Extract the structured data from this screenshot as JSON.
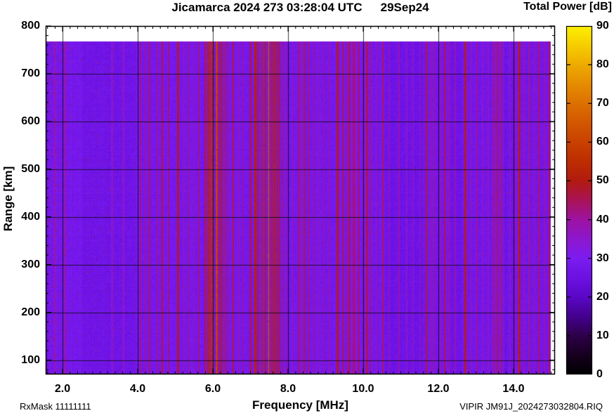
{
  "title": {
    "main": "Jicamarca 2024 273 03:28:04 UTC",
    "date": "29Sep24"
  },
  "colorbar": {
    "title": "Total Power [dB]",
    "min": 0,
    "max": 90,
    "tick_step": 10,
    "tick_labels": [
      "0",
      "10",
      "20",
      "30",
      "40",
      "50",
      "60",
      "70",
      "80",
      "90"
    ],
    "palette": [
      [
        0,
        "#000000"
      ],
      [
        5,
        "#16001f"
      ],
      [
        10,
        "#2d0048"
      ],
      [
        15,
        "#44008f"
      ],
      [
        20,
        "#5a07c6"
      ],
      [
        25,
        "#6c11e2"
      ],
      [
        30,
        "#7b1cf0"
      ],
      [
        35,
        "#8d17cd"
      ],
      [
        40,
        "#9d12a2"
      ],
      [
        45,
        "#a91356"
      ],
      [
        50,
        "#b21a10"
      ],
      [
        55,
        "#bd2d00"
      ],
      [
        60,
        "#c94100"
      ],
      [
        65,
        "#d25700"
      ],
      [
        70,
        "#dc7000"
      ],
      [
        75,
        "#e58c00"
      ],
      [
        80,
        "#eeab00"
      ],
      [
        85,
        "#f6cd00"
      ],
      [
        90,
        "#fdf000"
      ]
    ]
  },
  "axes": {
    "x": {
      "label": "Frequency [MHz]",
      "min": 1.55,
      "max": 15.1,
      "major_ticks": [
        2,
        4,
        6,
        8,
        10,
        12,
        14
      ],
      "major_tick_labels": [
        "2.0",
        "4.0",
        "6.0",
        "8.0",
        "10.0",
        "12.0",
        "14.0"
      ],
      "minor_step": 0.2
    },
    "y": {
      "label": "Range [km]",
      "min": 70,
      "max": 800,
      "major_ticks": [
        100,
        200,
        300,
        400,
        500,
        600,
        700,
        800
      ],
      "major_tick_labels": [
        "100",
        "200",
        "300",
        "400",
        "500",
        "600",
        "700",
        "800"
      ],
      "minor_step": 20
    }
  },
  "footer": {
    "left": "RxMask 11111111",
    "right": "VIPIR  JM91J_2024273032804.RIQ"
  },
  "chart_data": {
    "type": "heatmap",
    "title": "Jicamarca 2024 273 03:28:04 UTC  29Sep24",
    "xlabel": "Frequency [MHz]",
    "ylabel": "Range [km]",
    "zlabel": "Total Power [dB]",
    "x_range_mhz": [
      1.55,
      15.1
    ],
    "y_range_km": [
      70,
      800
    ],
    "z_range_db": [
      0,
      90
    ],
    "grid": true,
    "data_extent": {
      "freq_mhz": [
        1.55,
        14.98
      ],
      "range_km": [
        70,
        768
      ]
    },
    "background_power_db": 28.2,
    "background_power_db_above_10mhz": 27.5,
    "description": "VIPIR ionosonde total received power vs frequency and range; violet background near 28 dB with vertical red/orange RFI stripes, impulsive noise speckle below ~3.7 MHz.",
    "rfi_stripes": [
      {
        "freq_mhz": 1.8,
        "half_width_mhz": 0.02,
        "peak_db": 38
      },
      {
        "freq_mhz": 2.07,
        "half_width_mhz": 0.02,
        "peak_db": 40
      },
      {
        "freq_mhz": 3.32,
        "half_width_mhz": 0.02,
        "peak_db": 37
      },
      {
        "freq_mhz": 3.62,
        "half_width_mhz": 0.02,
        "peak_db": 37
      },
      {
        "freq_mhz": 4.07,
        "half_width_mhz": 0.02,
        "peak_db": 43
      },
      {
        "freq_mhz": 4.2,
        "half_width_mhz": 0.015,
        "peak_db": 40
      },
      {
        "freq_mhz": 4.32,
        "half_width_mhz": 0.022,
        "peak_db": 45
      },
      {
        "freq_mhz": 4.52,
        "half_width_mhz": 0.018,
        "peak_db": 42
      },
      {
        "freq_mhz": 4.65,
        "half_width_mhz": 0.025,
        "peak_db": 47
      },
      {
        "freq_mhz": 4.82,
        "half_width_mhz": 0.02,
        "peak_db": 44
      },
      {
        "freq_mhz": 5.07,
        "half_width_mhz": 0.028,
        "peak_db": 49
      },
      {
        "freq_mhz": 5.22,
        "half_width_mhz": 0.015,
        "peak_db": 40
      },
      {
        "freq_mhz": 5.35,
        "half_width_mhz": 0.018,
        "peak_db": 42
      },
      {
        "freq_mhz": 5.5,
        "half_width_mhz": 0.015,
        "peak_db": 40
      },
      {
        "freq_mhz": 5.62,
        "half_width_mhz": 0.018,
        "peak_db": 43
      },
      {
        "freq_mhz": 5.8,
        "half_width_mhz": 0.02,
        "peak_db": 47
      },
      {
        "freq_mhz": 5.88,
        "half_width_mhz": 0.03,
        "peak_db": 53
      },
      {
        "freq_mhz": 5.97,
        "half_width_mhz": 0.028,
        "peak_db": 56
      },
      {
        "freq_mhz": 6.1,
        "half_width_mhz": 0.022,
        "peak_db": 63
      },
      {
        "freq_mhz": 6.18,
        "half_width_mhz": 0.02,
        "peak_db": 48
      },
      {
        "freq_mhz": 6.24,
        "half_width_mhz": 0.02,
        "peak_db": 50
      },
      {
        "freq_mhz": 6.33,
        "half_width_mhz": 0.018,
        "peak_db": 44
      },
      {
        "freq_mhz": 6.4,
        "half_width_mhz": 0.018,
        "peak_db": 45
      },
      {
        "freq_mhz": 6.54,
        "half_width_mhz": 0.022,
        "peak_db": 47
      },
      {
        "freq_mhz": 6.68,
        "half_width_mhz": 0.015,
        "peak_db": 41
      },
      {
        "freq_mhz": 6.8,
        "half_width_mhz": 0.015,
        "peak_db": 40
      },
      {
        "freq_mhz": 7.0,
        "half_width_mhz": 0.022,
        "peak_db": 47
      },
      {
        "freq_mhz": 7.12,
        "half_width_mhz": 0.028,
        "peak_db": 53
      },
      {
        "freq_mhz": 7.2,
        "half_width_mhz": 0.02,
        "peak_db": 50
      },
      {
        "freq_mhz": 7.31,
        "half_width_mhz": 0.022,
        "peak_db": 53
      },
      {
        "freq_mhz": 7.4,
        "half_width_mhz": 0.018,
        "peak_db": 49
      },
      {
        "freq_mhz": 7.48,
        "half_width_mhz": 0.016,
        "peak_db": 64
      },
      {
        "freq_mhz": 7.56,
        "half_width_mhz": 0.018,
        "peak_db": 51
      },
      {
        "freq_mhz": 7.63,
        "half_width_mhz": 0.025,
        "peak_db": 53
      },
      {
        "freq_mhz": 7.72,
        "half_width_mhz": 0.018,
        "peak_db": 48
      },
      {
        "freq_mhz": 7.78,
        "half_width_mhz": 0.02,
        "peak_db": 49
      },
      {
        "freq_mhz": 7.88,
        "half_width_mhz": 0.015,
        "peak_db": 43
      },
      {
        "freq_mhz": 7.95,
        "half_width_mhz": 0.015,
        "peak_db": 42
      },
      {
        "freq_mhz": 8.12,
        "half_width_mhz": 0.015,
        "peak_db": 40
      },
      {
        "freq_mhz": 8.28,
        "half_width_mhz": 0.02,
        "peak_db": 44
      },
      {
        "freq_mhz": 8.36,
        "half_width_mhz": 0.015,
        "peak_db": 42
      },
      {
        "freq_mhz": 8.43,
        "half_width_mhz": 0.025,
        "peak_db": 46
      },
      {
        "freq_mhz": 8.55,
        "half_width_mhz": 0.018,
        "peak_db": 44
      },
      {
        "freq_mhz": 8.69,
        "half_width_mhz": 0.016,
        "peak_db": 41
      },
      {
        "freq_mhz": 8.83,
        "half_width_mhz": 0.013,
        "peak_db": 39
      },
      {
        "freq_mhz": 8.95,
        "half_width_mhz": 0.015,
        "peak_db": 40
      },
      {
        "freq_mhz": 9.1,
        "half_width_mhz": 0.013,
        "peak_db": 39
      },
      {
        "freq_mhz": 9.32,
        "half_width_mhz": 0.03,
        "peak_db": 50
      },
      {
        "freq_mhz": 9.45,
        "half_width_mhz": 0.02,
        "peak_db": 46
      },
      {
        "freq_mhz": 9.55,
        "half_width_mhz": 0.015,
        "peak_db": 42
      },
      {
        "freq_mhz": 9.63,
        "half_width_mhz": 0.022,
        "peak_db": 47
      },
      {
        "freq_mhz": 9.75,
        "half_width_mhz": 0.055,
        "peak_db": 41
      },
      {
        "freq_mhz": 9.88,
        "half_width_mhz": 0.025,
        "peak_db": 44
      },
      {
        "freq_mhz": 10.02,
        "half_width_mhz": 0.018,
        "peak_db": 42
      },
      {
        "freq_mhz": 10.1,
        "half_width_mhz": 0.025,
        "peak_db": 46
      },
      {
        "freq_mhz": 10.19,
        "half_width_mhz": 0.016,
        "peak_db": 43
      },
      {
        "freq_mhz": 10.35,
        "half_width_mhz": 0.013,
        "peak_db": 39
      },
      {
        "freq_mhz": 10.52,
        "half_width_mhz": 0.022,
        "peak_db": 45
      },
      {
        "freq_mhz": 10.68,
        "half_width_mhz": 0.013,
        "peak_db": 39
      },
      {
        "freq_mhz": 10.95,
        "half_width_mhz": 0.015,
        "peak_db": 39
      },
      {
        "freq_mhz": 11.15,
        "half_width_mhz": 0.015,
        "peak_db": 39
      },
      {
        "freq_mhz": 11.32,
        "half_width_mhz": 0.012,
        "peak_db": 38
      },
      {
        "freq_mhz": 11.52,
        "half_width_mhz": 0.012,
        "peak_db": 38
      },
      {
        "freq_mhz": 11.68,
        "half_width_mhz": 0.025,
        "peak_db": 48
      },
      {
        "freq_mhz": 11.8,
        "half_width_mhz": 0.014,
        "peak_db": 41
      },
      {
        "freq_mhz": 11.88,
        "half_width_mhz": 0.016,
        "peak_db": 42
      },
      {
        "freq_mhz": 12.05,
        "half_width_mhz": 0.013,
        "peak_db": 39
      },
      {
        "freq_mhz": 12.18,
        "half_width_mhz": 0.025,
        "peak_db": 45
      },
      {
        "freq_mhz": 12.3,
        "half_width_mhz": 0.013,
        "peak_db": 40
      },
      {
        "freq_mhz": 12.45,
        "half_width_mhz": 0.015,
        "peak_db": 39
      },
      {
        "freq_mhz": 12.72,
        "half_width_mhz": 0.026,
        "peak_db": 51
      },
      {
        "freq_mhz": 12.85,
        "half_width_mhz": 0.014,
        "peak_db": 41
      },
      {
        "freq_mhz": 13.02,
        "half_width_mhz": 0.02,
        "peak_db": 42
      },
      {
        "freq_mhz": 13.18,
        "half_width_mhz": 0.012,
        "peak_db": 38
      },
      {
        "freq_mhz": 13.32,
        "half_width_mhz": 0.014,
        "peak_db": 39
      },
      {
        "freq_mhz": 13.48,
        "half_width_mhz": 0.03,
        "peak_db": 42
      },
      {
        "freq_mhz": 13.58,
        "half_width_mhz": 0.025,
        "peak_db": 44
      },
      {
        "freq_mhz": 13.68,
        "half_width_mhz": 0.02,
        "peak_db": 44
      },
      {
        "freq_mhz": 13.9,
        "half_width_mhz": 0.013,
        "peak_db": 38
      },
      {
        "freq_mhz": 14.05,
        "half_width_mhz": 0.014,
        "peak_db": 40
      },
      {
        "freq_mhz": 14.15,
        "half_width_mhz": 0.026,
        "peak_db": 51
      },
      {
        "freq_mhz": 14.28,
        "half_width_mhz": 0.013,
        "peak_db": 40
      },
      {
        "freq_mhz": 14.42,
        "half_width_mhz": 0.018,
        "peak_db": 43
      },
      {
        "freq_mhz": 14.55,
        "half_width_mhz": 0.014,
        "peak_db": 41
      },
      {
        "freq_mhz": 14.68,
        "half_width_mhz": 0.02,
        "peak_db": 44
      },
      {
        "freq_mhz": 14.82,
        "half_width_mhz": 0.013,
        "peak_db": 40
      },
      {
        "freq_mhz": 14.95,
        "half_width_mhz": 0.024,
        "peak_db": 46
      }
    ],
    "dark_bands": [
      {
        "freq_range_mhz": [
          1.55,
          1.62
        ],
        "delta_db": -2.0
      },
      {
        "freq_range_mhz": [
          2.5,
          3.95
        ],
        "delta_db": -1.5
      },
      {
        "freq_range_mhz": [
          10.55,
          11.58
        ],
        "delta_db": -1.3
      },
      {
        "freq_range_mhz": [
          12.32,
          12.62
        ],
        "delta_db": -1.2
      },
      {
        "freq_range_mhz": [
          13.75,
          14.08
        ],
        "delta_db": -1.1
      }
    ],
    "speckle_noise": {
      "freq_range_mhz": [
        1.55,
        3.7
      ],
      "db_range": [
        36,
        54
      ],
      "description": "impulsive (lightning/static) red dots, density highest near 1.6-2.5 MHz, fading by 3.7 MHz; sparse dots elsewhere"
    }
  }
}
